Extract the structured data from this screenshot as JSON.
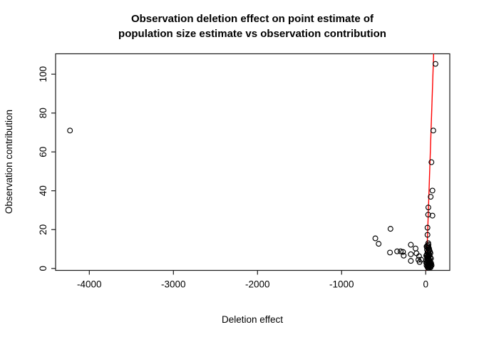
{
  "chart_data": {
    "type": "scatter",
    "title_line1": "Observation deletion effect on point estimate of",
    "title_line2": "population size estimate vs observation contribution",
    "xlabel": "Deletion effect",
    "ylabel": "Observation contribution",
    "xlim": [
      -4401,
      286
    ],
    "ylim": [
      -1,
      110.5
    ],
    "x_ticks": [
      -4000,
      -3000,
      -2000,
      -1000,
      0
    ],
    "y_ticks": [
      0,
      20,
      40,
      60,
      80,
      100
    ],
    "grid": false,
    "legend": null,
    "point_style": {
      "shape": "open-circle",
      "stroke_color": "#000000",
      "radius": 3.4
    },
    "axis_color": "#1a1a1a",
    "fit_line": {
      "color": "#ff0000",
      "x1": 94,
      "y1": 110.5,
      "x2": 7.6,
      "y2": -1
    },
    "points": [
      [
        -4230,
        71
      ],
      [
        116,
        105.3
      ],
      [
        90,
        71
      ],
      [
        68,
        54.7
      ],
      [
        80,
        40.1
      ],
      [
        59,
        36.9
      ],
      [
        31,
        31.4
      ],
      [
        29,
        27.7
      ],
      [
        80,
        27.2
      ],
      [
        21,
        21.0
      ],
      [
        21,
        17.3
      ],
      [
        30,
        13.0
      ],
      [
        -419,
        20.4
      ],
      [
        -599,
        15.5
      ],
      [
        -560,
        12.7
      ],
      [
        -425,
        8.2
      ],
      [
        -340,
        8.8
      ],
      [
        -298,
        8.8
      ],
      [
        -270,
        8.5
      ],
      [
        -262,
        6.6
      ],
      [
        -177,
        12.2
      ],
      [
        -121,
        10.3
      ],
      [
        -177,
        7.3
      ],
      [
        -110,
        7.8
      ],
      [
        -177,
        3.9
      ],
      [
        -87,
        4.5
      ],
      [
        -53,
        4.5
      ],
      [
        -79,
        6.3
      ],
      [
        -73,
        3.3
      ],
      [
        10,
        11.3
      ],
      [
        25,
        10.6
      ],
      [
        40,
        10.2
      ],
      [
        15,
        9.6
      ],
      [
        30,
        9.1
      ],
      [
        50,
        8.6
      ],
      [
        20,
        8.1
      ],
      [
        35,
        7.6
      ],
      [
        12,
        7.1
      ],
      [
        45,
        6.7
      ],
      [
        28,
        6.2
      ],
      [
        55,
        5.7
      ],
      [
        18,
        5.2
      ],
      [
        38,
        4.7
      ],
      [
        8,
        4.2
      ],
      [
        48,
        4.1
      ],
      [
        22,
        3.6
      ],
      [
        33,
        3.1
      ],
      [
        60,
        3.0
      ],
      [
        14,
        2.6
      ],
      [
        42,
        2.2
      ],
      [
        26,
        2.1
      ],
      [
        52,
        1.6
      ],
      [
        10,
        1.5
      ],
      [
        36,
        1.1
      ],
      [
        19,
        1.0
      ],
      [
        47,
        0.8
      ],
      [
        30,
        0.5
      ],
      [
        58,
        0.6
      ],
      [
        24,
        0.4
      ],
      [
        65,
        2.6
      ],
      [
        70,
        1.6
      ],
      [
        13,
        11.0
      ],
      [
        34,
        10.9
      ],
      [
        6,
        2.9
      ],
      [
        6,
        6.6
      ],
      [
        44,
        9.4
      ],
      [
        56,
        7.9
      ],
      [
        62,
        5.1
      ],
      [
        16,
        6.0
      ],
      [
        41,
        6.9
      ],
      [
        53,
        3.4
      ],
      [
        27,
        4.9
      ],
      [
        37,
        2.7
      ],
      [
        49,
        2.4
      ],
      [
        61,
        1.2
      ],
      [
        21,
        11.8
      ],
      [
        33,
        12.2
      ]
    ]
  }
}
